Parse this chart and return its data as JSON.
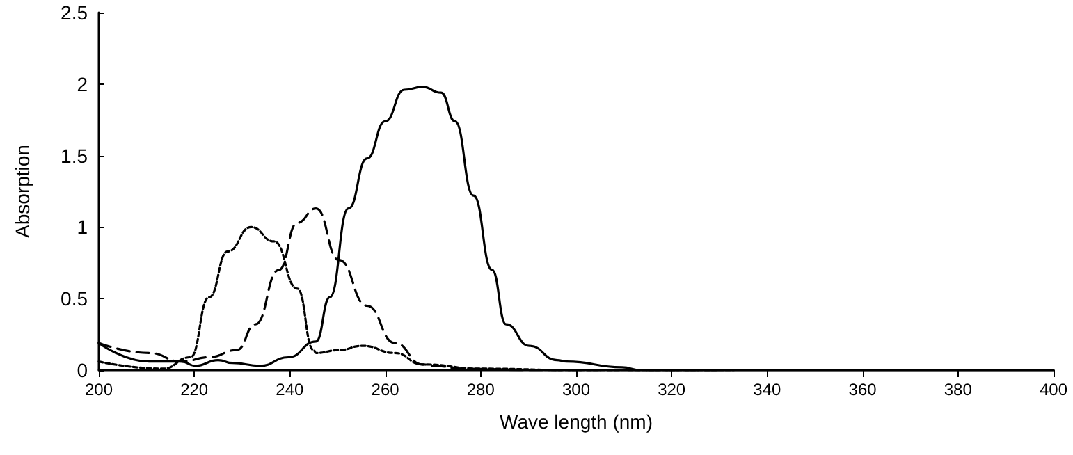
{
  "chart_data": {
    "type": "line",
    "xlabel": "Wave length (nm)",
    "ylabel": "Absorption",
    "xlim": [
      200,
      400
    ],
    "xticks": [
      200,
      220,
      240,
      260,
      280,
      300,
      320,
      340,
      360,
      380,
      400
    ],
    "ylim": [
      0,
      2.5
    ],
    "yticks": [
      0,
      0.5,
      1,
      1.5,
      2,
      2.5
    ],
    "grid": false,
    "marker": "none",
    "series": [
      {
        "color": "#000000",
        "line_style": "solid",
        "x": [
          200,
          210.5,
          217.3,
          220.2,
          225,
          228,
          233.8,
          239.7,
          245.5,
          248.4,
          252.3,
          256.2,
          260,
          264,
          267.8,
          271.7,
          274.6,
          278.5,
          282.4,
          285.3,
          290.2,
          296,
          298,
          309.6,
          313.5,
          330,
          360,
          400
        ],
        "values": [
          0.19,
          0.06,
          0.06,
          0.03,
          0.07,
          0.05,
          0.03,
          0.09,
          0.2,
          0.51,
          1.13,
          1.48,
          1.74,
          1.96,
          1.98,
          1.94,
          1.74,
          1.22,
          0.7,
          0.32,
          0.17,
          0.07,
          0.06,
          0.02,
          0,
          0,
          0,
          0
        ]
      },
      {
        "color": "#000000",
        "line_style": "dashed",
        "x": [
          200,
          210.5,
          217.4,
          223.1,
          228.9,
          232.8,
          237.7,
          241.6,
          245.5,
          250.3,
          256.2,
          262,
          267.8,
          270.3,
          276,
          290,
          310,
          330
        ],
        "values": [
          0.19,
          0.12,
          0.06,
          0.09,
          0.14,
          0.32,
          0.7,
          1.03,
          1.13,
          0.77,
          0.45,
          0.19,
          0.04,
          0.03,
          0.01,
          0,
          0,
          0
        ]
      },
      {
        "color": "#000000",
        "line_style": "dotted",
        "x": [
          200,
          213.4,
          219.2,
          223.1,
          227,
          231.9,
          236.7,
          241.6,
          245,
          245.5,
          250.3,
          255.2,
          262,
          267.8,
          280,
          300,
          333
        ],
        "values": [
          0.06,
          0.01,
          0.09,
          0.51,
          0.83,
          1.0,
          0.9,
          0.57,
          0.14,
          0.12,
          0.14,
          0.17,
          0.12,
          0.04,
          0.01,
          0,
          0
        ]
      }
    ]
  }
}
